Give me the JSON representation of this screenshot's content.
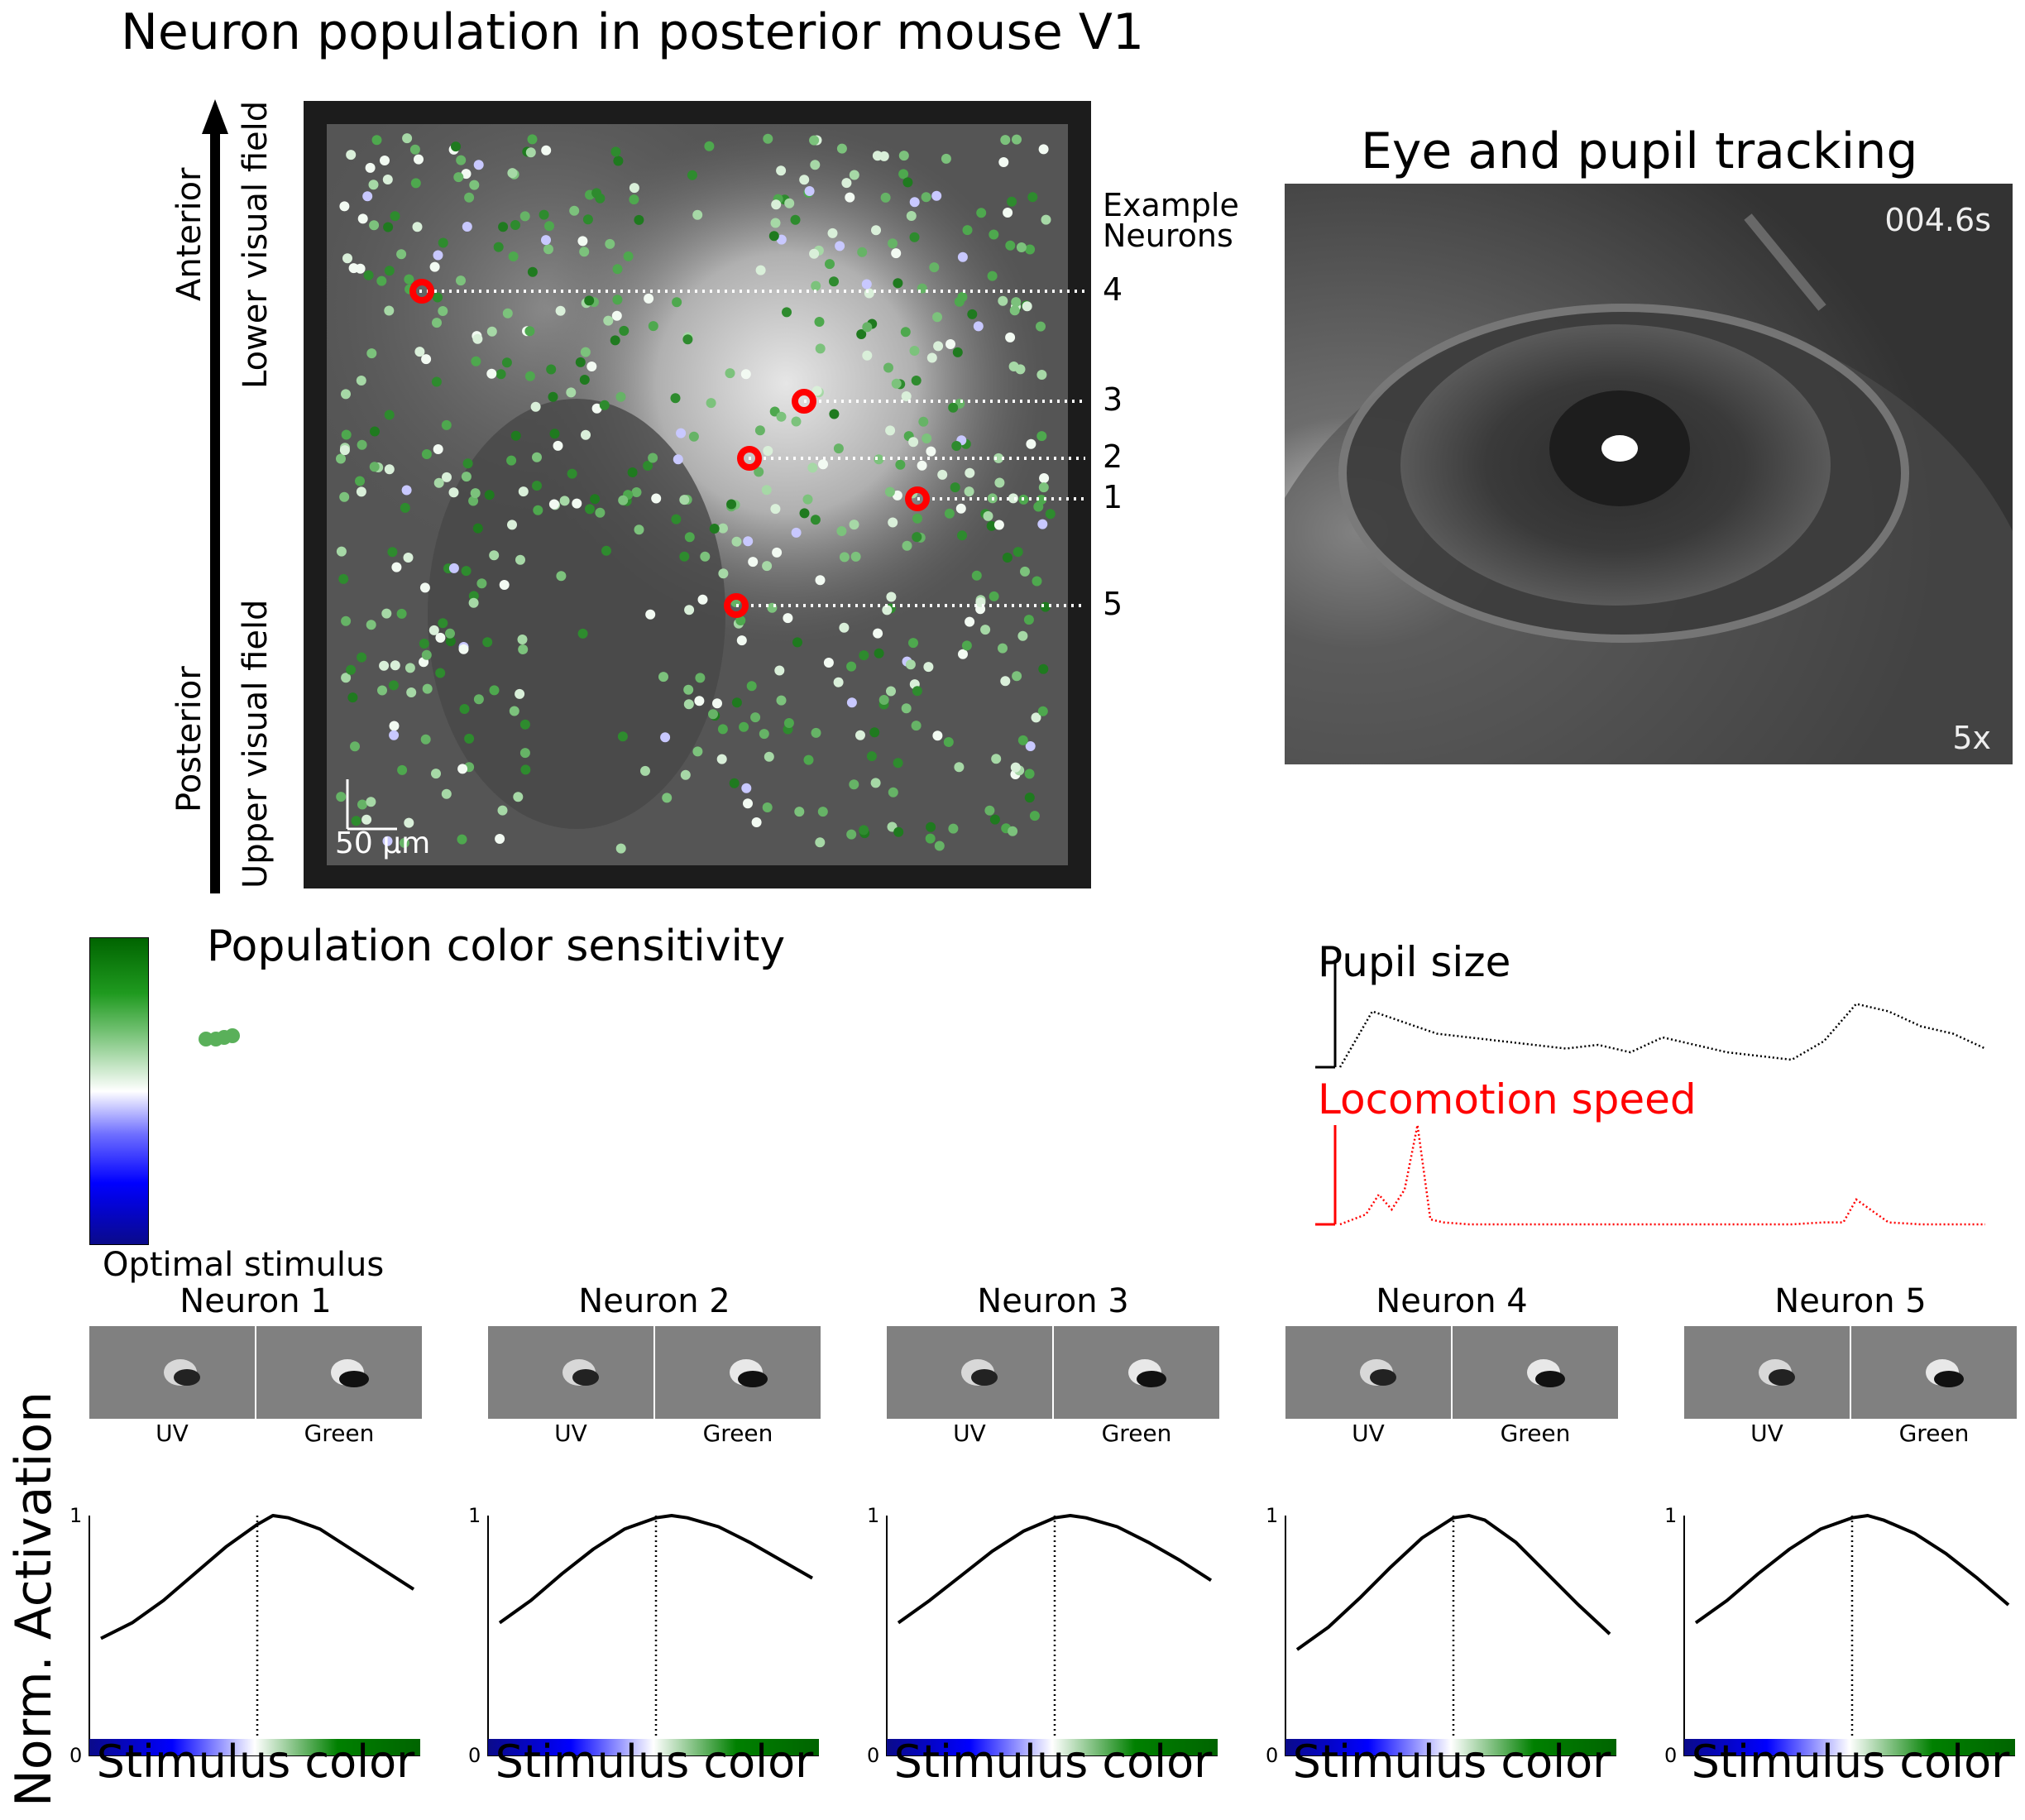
{
  "panel_a": {
    "title": "Neuron population in posterior mouse V1",
    "axis_labels": {
      "anterior": "Anterior",
      "posterior": "Posterior",
      "lower_visual_field": "Lower visual field",
      "upper_visual_field": "Upper visual field"
    },
    "example_neurons_label": [
      "Example",
      "Neurons"
    ],
    "example_neurons": [
      {
        "id": "4"
      },
      {
        "id": "3"
      },
      {
        "id": "2"
      },
      {
        "id": "1"
      },
      {
        "id": "5"
      }
    ],
    "scalebar": "50 µm",
    "colors": {
      "marker": "#ff0000",
      "frame": "#1c1c1c"
    }
  },
  "panel_b": {
    "title": "Eye and pupil tracking",
    "timestamp": "004.6s",
    "speed": "5x"
  },
  "panel_c": {
    "title": "Population color sensitivity",
    "colorbar": [
      "#0a0a8a",
      "#0000ff",
      "#ffffff",
      "#008000",
      "#006400"
    ]
  },
  "panel_d": {
    "pupil_label": "Pupil size",
    "locomotion_label": "Locomotion speed",
    "colors": {
      "pupil": "#000000",
      "locomotion": "#ff0000"
    }
  },
  "optimal_stimulus": {
    "title": "Optimal stimulus",
    "channel_labels": [
      "UV",
      "Green"
    ],
    "neurons": [
      {
        "label": "Neuron 1"
      },
      {
        "label": "Neuron 2"
      },
      {
        "label": "Neuron 3"
      },
      {
        "label": "Neuron 4"
      },
      {
        "label": "Neuron 5"
      }
    ]
  },
  "tuning": {
    "ylabel": "Norm. Activation",
    "xlabel": "Stimulus color",
    "yticks": [
      "0",
      "1"
    ]
  },
  "chart_data": [
    {
      "type": "line",
      "title": "Pupil size",
      "x": [
        0,
        5,
        10,
        15,
        20,
        25,
        30,
        35,
        40,
        45,
        50,
        55,
        60,
        65,
        70,
        75,
        80,
        85,
        90,
        95,
        100
      ],
      "series": [
        {
          "name": "Pupil size",
          "values": [
            0.0,
            0.75,
            0.6,
            0.45,
            0.4,
            0.35,
            0.3,
            0.25,
            0.3,
            0.2,
            0.4,
            0.3,
            0.2,
            0.15,
            0.1,
            0.35,
            0.85,
            0.75,
            0.55,
            0.45,
            0.25
          ]
        }
      ]
    },
    {
      "type": "line",
      "title": "Locomotion speed",
      "x": [
        0,
        2,
        4,
        6,
        8,
        10,
        12,
        14,
        16,
        20,
        30,
        40,
        50,
        60,
        70,
        75,
        78,
        80,
        85,
        90,
        100
      ],
      "series": [
        {
          "name": "Locomotion speed",
          "values": [
            0.0,
            0.05,
            0.1,
            0.3,
            0.15,
            0.35,
            1.0,
            0.05,
            0.02,
            0.0,
            0.0,
            0.0,
            0.0,
            0.0,
            0.0,
            0.02,
            0.02,
            0.25,
            0.02,
            0.0,
            0.0
          ]
        }
      ]
    },
    {
      "type": "line",
      "title": "Neuron 1",
      "xlabel": "Stimulus color",
      "ylabel": "Norm. Activation",
      "ylim": [
        0,
        1
      ],
      "x": [
        0,
        0.1,
        0.2,
        0.3,
        0.4,
        0.5,
        0.55,
        0.6,
        0.7,
        0.8,
        0.9,
        1.0
      ],
      "series": [
        {
          "name": "Neuron 1",
          "values": [
            0.45,
            0.52,
            0.62,
            0.74,
            0.86,
            0.96,
            1.0,
            0.99,
            0.94,
            0.85,
            0.76,
            0.67
          ]
        }
      ],
      "vline": 0.5
    },
    {
      "type": "line",
      "title": "Neuron 2",
      "xlabel": "Stimulus color",
      "ylabel": "Norm. Activation",
      "ylim": [
        0,
        1
      ],
      "x": [
        0,
        0.1,
        0.2,
        0.3,
        0.4,
        0.5,
        0.55,
        0.6,
        0.7,
        0.8,
        0.9,
        1.0
      ],
      "series": [
        {
          "name": "Neuron 2",
          "values": [
            0.52,
            0.62,
            0.74,
            0.85,
            0.94,
            0.99,
            1.0,
            0.99,
            0.95,
            0.88,
            0.8,
            0.72
          ]
        }
      ],
      "vline": 0.5
    },
    {
      "type": "line",
      "title": "Neuron 3",
      "xlabel": "Stimulus color",
      "ylabel": "Norm. Activation",
      "ylim": [
        0,
        1
      ],
      "x": [
        0,
        0.1,
        0.2,
        0.3,
        0.4,
        0.5,
        0.55,
        0.6,
        0.7,
        0.8,
        0.9,
        1.0
      ],
      "series": [
        {
          "name": "Neuron 3",
          "values": [
            0.52,
            0.62,
            0.73,
            0.84,
            0.93,
            0.99,
            1.0,
            0.99,
            0.95,
            0.88,
            0.8,
            0.71
          ]
        }
      ],
      "vline": 0.5
    },
    {
      "type": "line",
      "title": "Neuron 4",
      "xlabel": "Stimulus color",
      "ylabel": "Norm. Activation",
      "ylim": [
        0,
        1
      ],
      "x": [
        0,
        0.1,
        0.2,
        0.3,
        0.4,
        0.5,
        0.55,
        0.6,
        0.7,
        0.8,
        0.9,
        1.0
      ],
      "series": [
        {
          "name": "Neuron 4",
          "values": [
            0.4,
            0.5,
            0.63,
            0.77,
            0.9,
            0.99,
            1.0,
            0.98,
            0.88,
            0.74,
            0.6,
            0.47
          ]
        }
      ],
      "vline": 0.5
    },
    {
      "type": "line",
      "title": "Neuron 5",
      "xlabel": "Stimulus color",
      "ylabel": "Norm. Activation",
      "ylim": [
        0,
        1
      ],
      "x": [
        0,
        0.1,
        0.2,
        0.3,
        0.4,
        0.5,
        0.55,
        0.6,
        0.7,
        0.8,
        0.9,
        1.0
      ],
      "series": [
        {
          "name": "Neuron 5",
          "values": [
            0.52,
            0.62,
            0.74,
            0.85,
            0.94,
            0.99,
            1.0,
            0.98,
            0.92,
            0.83,
            0.72,
            0.6
          ]
        }
      ],
      "vline": 0.5
    }
  ]
}
